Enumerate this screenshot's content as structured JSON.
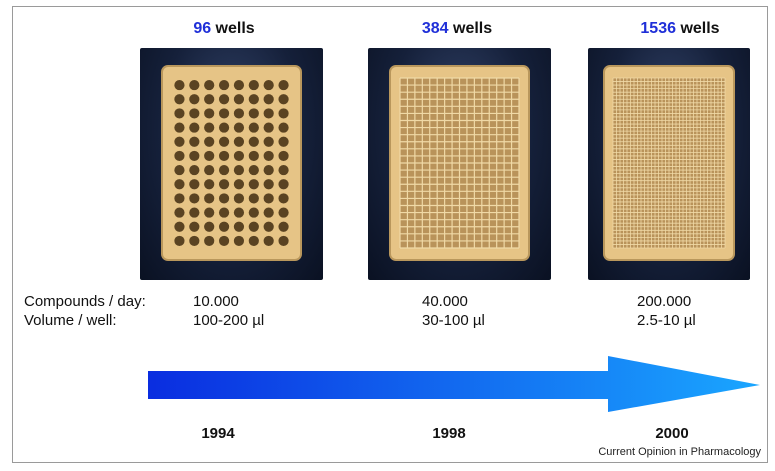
{
  "plates": [
    {
      "count": "96",
      "unit": " wells",
      "compounds": "10.000",
      "volume": "100-200 µl",
      "year": "1994",
      "rows": 8,
      "cols": 12
    },
    {
      "count": "384",
      "unit": " wells",
      "compounds": "40.000",
      "volume": "30-100 µl",
      "year": "1998",
      "rows": 16,
      "cols": 24
    },
    {
      "count": "1536",
      "unit": " wells",
      "compounds": "200.000",
      "volume": "2.5-10 µl",
      "year": "2000",
      "rows": 32,
      "cols": 48
    }
  ],
  "labels": {
    "compounds": "Compounds / day:",
    "volume": "Volume / well:"
  },
  "citation": "Current Opinion in Pharmacology",
  "colors": {
    "count_text": "#1f2fd8",
    "arrow_start": "#0a2de0",
    "arrow_end": "#1aa6ff",
    "plate_body": "#e9c98a"
  }
}
